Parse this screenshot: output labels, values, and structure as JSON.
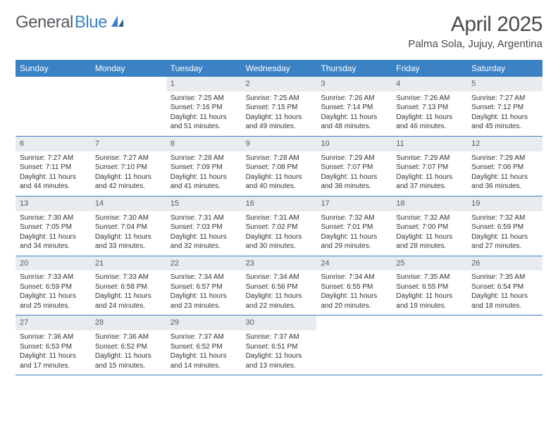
{
  "brand": {
    "text1": "General",
    "text2": "Blue"
  },
  "title": "April 2025",
  "location": "Palma Sola, Jujuy, Argentina",
  "colors": {
    "header_bg": "#3b82c4",
    "header_text": "#ffffff",
    "daynum_bg": "#e9ecef",
    "daynum_text": "#555b61",
    "body_text": "#333333",
    "title_text": "#4a4a4a",
    "border": "#3b82c4"
  },
  "typography": {
    "body_fontsize": 10,
    "title_fontsize": 30,
    "location_fontsize": 15,
    "dow_fontsize": 12
  },
  "dow": [
    "Sunday",
    "Monday",
    "Tuesday",
    "Wednesday",
    "Thursday",
    "Friday",
    "Saturday"
  ],
  "weeks": [
    [
      null,
      null,
      {
        "n": "1",
        "sr": "Sunrise: 7:25 AM",
        "ss": "Sunset: 7:16 PM",
        "dl": "Daylight: 11 hours and 51 minutes."
      },
      {
        "n": "2",
        "sr": "Sunrise: 7:25 AM",
        "ss": "Sunset: 7:15 PM",
        "dl": "Daylight: 11 hours and 49 minutes."
      },
      {
        "n": "3",
        "sr": "Sunrise: 7:26 AM",
        "ss": "Sunset: 7:14 PM",
        "dl": "Daylight: 11 hours and 48 minutes."
      },
      {
        "n": "4",
        "sr": "Sunrise: 7:26 AM",
        "ss": "Sunset: 7:13 PM",
        "dl": "Daylight: 11 hours and 46 minutes."
      },
      {
        "n": "5",
        "sr": "Sunrise: 7:27 AM",
        "ss": "Sunset: 7:12 PM",
        "dl": "Daylight: 11 hours and 45 minutes."
      }
    ],
    [
      {
        "n": "6",
        "sr": "Sunrise: 7:27 AM",
        "ss": "Sunset: 7:11 PM",
        "dl": "Daylight: 11 hours and 44 minutes."
      },
      {
        "n": "7",
        "sr": "Sunrise: 7:27 AM",
        "ss": "Sunset: 7:10 PM",
        "dl": "Daylight: 11 hours and 42 minutes."
      },
      {
        "n": "8",
        "sr": "Sunrise: 7:28 AM",
        "ss": "Sunset: 7:09 PM",
        "dl": "Daylight: 11 hours and 41 minutes."
      },
      {
        "n": "9",
        "sr": "Sunrise: 7:28 AM",
        "ss": "Sunset: 7:08 PM",
        "dl": "Daylight: 11 hours and 40 minutes."
      },
      {
        "n": "10",
        "sr": "Sunrise: 7:29 AM",
        "ss": "Sunset: 7:07 PM",
        "dl": "Daylight: 11 hours and 38 minutes."
      },
      {
        "n": "11",
        "sr": "Sunrise: 7:29 AM",
        "ss": "Sunset: 7:07 PM",
        "dl": "Daylight: 11 hours and 37 minutes."
      },
      {
        "n": "12",
        "sr": "Sunrise: 7:29 AM",
        "ss": "Sunset: 7:06 PM",
        "dl": "Daylight: 11 hours and 36 minutes."
      }
    ],
    [
      {
        "n": "13",
        "sr": "Sunrise: 7:30 AM",
        "ss": "Sunset: 7:05 PM",
        "dl": "Daylight: 11 hours and 34 minutes."
      },
      {
        "n": "14",
        "sr": "Sunrise: 7:30 AM",
        "ss": "Sunset: 7:04 PM",
        "dl": "Daylight: 11 hours and 33 minutes."
      },
      {
        "n": "15",
        "sr": "Sunrise: 7:31 AM",
        "ss": "Sunset: 7:03 PM",
        "dl": "Daylight: 11 hours and 32 minutes."
      },
      {
        "n": "16",
        "sr": "Sunrise: 7:31 AM",
        "ss": "Sunset: 7:02 PM",
        "dl": "Daylight: 11 hours and 30 minutes."
      },
      {
        "n": "17",
        "sr": "Sunrise: 7:32 AM",
        "ss": "Sunset: 7:01 PM",
        "dl": "Daylight: 11 hours and 29 minutes."
      },
      {
        "n": "18",
        "sr": "Sunrise: 7:32 AM",
        "ss": "Sunset: 7:00 PM",
        "dl": "Daylight: 11 hours and 28 minutes."
      },
      {
        "n": "19",
        "sr": "Sunrise: 7:32 AM",
        "ss": "Sunset: 6:59 PM",
        "dl": "Daylight: 11 hours and 27 minutes."
      }
    ],
    [
      {
        "n": "20",
        "sr": "Sunrise: 7:33 AM",
        "ss": "Sunset: 6:59 PM",
        "dl": "Daylight: 11 hours and 25 minutes."
      },
      {
        "n": "21",
        "sr": "Sunrise: 7:33 AM",
        "ss": "Sunset: 6:58 PM",
        "dl": "Daylight: 11 hours and 24 minutes."
      },
      {
        "n": "22",
        "sr": "Sunrise: 7:34 AM",
        "ss": "Sunset: 6:57 PM",
        "dl": "Daylight: 11 hours and 23 minutes."
      },
      {
        "n": "23",
        "sr": "Sunrise: 7:34 AM",
        "ss": "Sunset: 6:56 PM",
        "dl": "Daylight: 11 hours and 22 minutes."
      },
      {
        "n": "24",
        "sr": "Sunrise: 7:34 AM",
        "ss": "Sunset: 6:55 PM",
        "dl": "Daylight: 11 hours and 20 minutes."
      },
      {
        "n": "25",
        "sr": "Sunrise: 7:35 AM",
        "ss": "Sunset: 6:55 PM",
        "dl": "Daylight: 11 hours and 19 minutes."
      },
      {
        "n": "26",
        "sr": "Sunrise: 7:35 AM",
        "ss": "Sunset: 6:54 PM",
        "dl": "Daylight: 11 hours and 18 minutes."
      }
    ],
    [
      {
        "n": "27",
        "sr": "Sunrise: 7:36 AM",
        "ss": "Sunset: 6:53 PM",
        "dl": "Daylight: 11 hours and 17 minutes."
      },
      {
        "n": "28",
        "sr": "Sunrise: 7:36 AM",
        "ss": "Sunset: 6:52 PM",
        "dl": "Daylight: 11 hours and 15 minutes."
      },
      {
        "n": "29",
        "sr": "Sunrise: 7:37 AM",
        "ss": "Sunset: 6:52 PM",
        "dl": "Daylight: 11 hours and 14 minutes."
      },
      {
        "n": "30",
        "sr": "Sunrise: 7:37 AM",
        "ss": "Sunset: 6:51 PM",
        "dl": "Daylight: 11 hours and 13 minutes."
      },
      null,
      null,
      null
    ]
  ]
}
